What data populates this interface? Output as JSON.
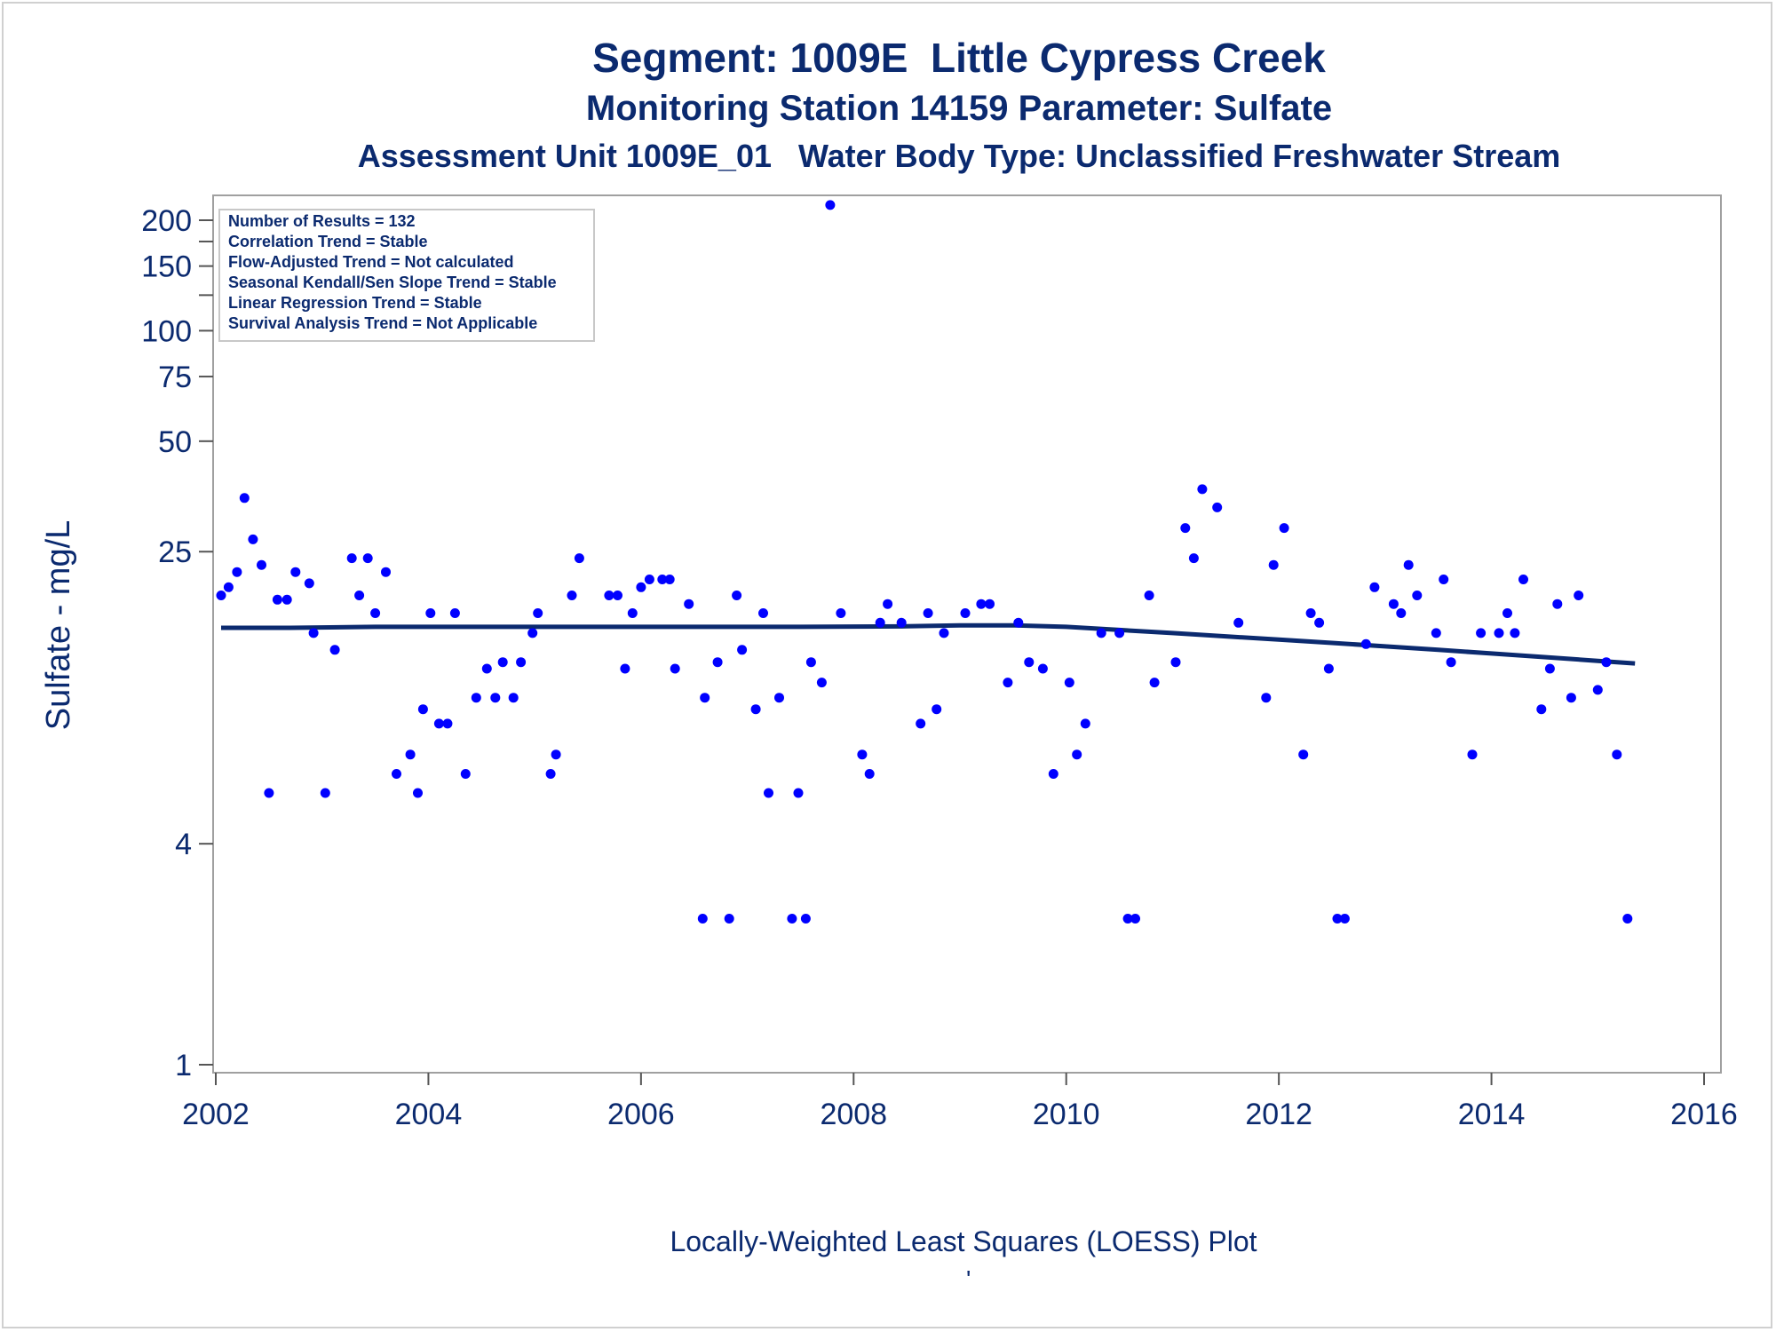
{
  "title": "Segment: 1009E  Little Cypress Creek",
  "subtitle": "Monitoring Station 14159 Parameter: Sulfate",
  "subtitle2": "Assessment Unit 1009E_01   Water Body Type: Unclassified Freshwater Stream",
  "footnote": "Locally-Weighted Least Squares (LOESS) Plot",
  "footnote_mark": "'",
  "stats_box": [
    "Number of Results = 132",
    "Correlation Trend = Stable",
    "Flow-Adjusted Trend = Not calculated",
    "Seasonal Kendall/Sen Slope Trend = Stable",
    "Linear Regression Trend = Stable",
    "Survival Analysis Trend = Not Applicable"
  ],
  "colors": {
    "text": "#0b2a6f",
    "points": "#0000ff",
    "loess": "#0b2a6f",
    "frame": "#a0a0a0"
  },
  "chart_data": {
    "type": "scatter",
    "ylabel": "Sulfate - mg/L",
    "xlabel": "",
    "y_scale": "log",
    "xlim": [
      2002,
      2016
    ],
    "ylim": [
      1,
      220
    ],
    "x_ticks": [
      2002,
      2004,
      2006,
      2008,
      2010,
      2012,
      2014,
      2016
    ],
    "y_ticks": [
      1,
      4,
      25,
      50,
      75,
      100,
      150,
      200
    ],
    "legend": "none",
    "grid": false,
    "series": [
      {
        "points": [
          [
            2002.05,
            19
          ],
          [
            2002.12,
            20
          ],
          [
            2002.2,
            22
          ],
          [
            2002.27,
            35
          ],
          [
            2002.35,
            27
          ],
          [
            2002.43,
            23
          ],
          [
            2002.5,
            5.5
          ],
          [
            2002.58,
            18.5
          ],
          [
            2002.67,
            18.5
          ],
          [
            2002.75,
            22
          ],
          [
            2002.88,
            20.5
          ],
          [
            2002.92,
            15
          ],
          [
            2003.03,
            5.5
          ],
          [
            2003.12,
            13.5
          ],
          [
            2003.28,
            24
          ],
          [
            2003.35,
            19
          ],
          [
            2003.43,
            24
          ],
          [
            2003.5,
            17
          ],
          [
            2003.6,
            22
          ],
          [
            2003.7,
            6.2
          ],
          [
            2003.83,
            7
          ],
          [
            2003.9,
            5.5
          ],
          [
            2003.95,
            9.3
          ],
          [
            2004.02,
            17
          ],
          [
            2004.1,
            8.5
          ],
          [
            2004.18,
            8.5
          ],
          [
            2004.25,
            17
          ],
          [
            2004.35,
            6.2
          ],
          [
            2004.45,
            10
          ],
          [
            2004.55,
            12
          ],
          [
            2004.63,
            10
          ],
          [
            2004.7,
            12.5
          ],
          [
            2004.8,
            10
          ],
          [
            2004.87,
            12.5
          ],
          [
            2004.98,
            15
          ],
          [
            2005.03,
            17
          ],
          [
            2005.15,
            6.2
          ],
          [
            2005.2,
            7
          ],
          [
            2005.35,
            19
          ],
          [
            2005.42,
            24
          ],
          [
            2005.7,
            19
          ],
          [
            2005.78,
            19
          ],
          [
            2005.85,
            12
          ],
          [
            2005.92,
            17
          ],
          [
            2006.0,
            20
          ],
          [
            2006.08,
            21
          ],
          [
            2006.2,
            21
          ],
          [
            2006.27,
            21
          ],
          [
            2006.32,
            12
          ],
          [
            2006.45,
            18
          ],
          [
            2006.58,
            2.5
          ],
          [
            2006.6,
            10
          ],
          [
            2006.72,
            12.5
          ],
          [
            2006.83,
            2.5
          ],
          [
            2006.9,
            19
          ],
          [
            2006.95,
            13.5
          ],
          [
            2007.08,
            9.3
          ],
          [
            2007.15,
            17
          ],
          [
            2007.2,
            5.5
          ],
          [
            2007.3,
            10
          ],
          [
            2007.42,
            2.5
          ],
          [
            2007.48,
            5.5
          ],
          [
            2007.55,
            2.5
          ],
          [
            2007.6,
            12.5
          ],
          [
            2007.7,
            11
          ],
          [
            2007.78,
            220
          ],
          [
            2007.88,
            17
          ],
          [
            2008.08,
            7
          ],
          [
            2008.15,
            6.2
          ],
          [
            2008.25,
            16
          ],
          [
            2008.32,
            18
          ],
          [
            2008.45,
            16
          ],
          [
            2008.63,
            8.5
          ],
          [
            2008.7,
            17
          ],
          [
            2008.78,
            9.3
          ],
          [
            2008.85,
            15
          ],
          [
            2009.05,
            17
          ],
          [
            2009.2,
            18
          ],
          [
            2009.28,
            18
          ],
          [
            2009.45,
            11
          ],
          [
            2009.55,
            16
          ],
          [
            2009.65,
            12.5
          ],
          [
            2009.78,
            12
          ],
          [
            2009.88,
            6.2
          ],
          [
            2010.03,
            11
          ],
          [
            2010.1,
            7
          ],
          [
            2010.18,
            8.5
          ],
          [
            2010.33,
            15
          ],
          [
            2010.5,
            15
          ],
          [
            2010.58,
            2.5
          ],
          [
            2010.65,
            2.5
          ],
          [
            2010.78,
            19
          ],
          [
            2010.83,
            11
          ],
          [
            2011.03,
            12.5
          ],
          [
            2011.12,
            29
          ],
          [
            2011.2,
            24
          ],
          [
            2011.28,
            37
          ],
          [
            2011.42,
            33
          ],
          [
            2011.62,
            16
          ],
          [
            2011.88,
            10
          ],
          [
            2011.95,
            23
          ],
          [
            2012.05,
            29
          ],
          [
            2012.23,
            7
          ],
          [
            2012.3,
            17
          ],
          [
            2012.38,
            16
          ],
          [
            2012.47,
            12
          ],
          [
            2012.55,
            2.5
          ],
          [
            2012.62,
            2.5
          ],
          [
            2012.82,
            14
          ],
          [
            2012.9,
            20
          ],
          [
            2013.08,
            18
          ],
          [
            2013.15,
            17
          ],
          [
            2013.22,
            23
          ],
          [
            2013.3,
            19
          ],
          [
            2013.48,
            15
          ],
          [
            2013.55,
            21
          ],
          [
            2013.62,
            12.5
          ],
          [
            2013.82,
            7
          ],
          [
            2013.9,
            15
          ],
          [
            2014.07,
            15
          ],
          [
            2014.15,
            17
          ],
          [
            2014.22,
            15
          ],
          [
            2014.3,
            21
          ],
          [
            2014.47,
            9.3
          ],
          [
            2014.55,
            12
          ],
          [
            2014.62,
            18
          ],
          [
            2014.75,
            10
          ],
          [
            2014.82,
            19
          ],
          [
            2015.0,
            10.5
          ],
          [
            2015.08,
            12.5
          ],
          [
            2015.18,
            7
          ],
          [
            2015.28,
            2.5
          ]
        ]
      },
      {
        "loess": [
          [
            2002.05,
            15.5
          ],
          [
            2002.7,
            15.5
          ],
          [
            2003.5,
            15.6
          ],
          [
            2004.5,
            15.6
          ],
          [
            2005.5,
            15.6
          ],
          [
            2006.5,
            15.6
          ],
          [
            2007.5,
            15.6
          ],
          [
            2008.5,
            15.65
          ],
          [
            2009.0,
            15.75
          ],
          [
            2009.5,
            15.75
          ],
          [
            2010.0,
            15.6
          ],
          [
            2010.5,
            15.3
          ],
          [
            2011.0,
            15.0
          ],
          [
            2011.5,
            14.7
          ],
          [
            2012.0,
            14.4
          ],
          [
            2012.5,
            14.1
          ],
          [
            2013.0,
            13.8
          ],
          [
            2013.5,
            13.5
          ],
          [
            2014.0,
            13.2
          ],
          [
            2014.5,
            12.9
          ],
          [
            2015.0,
            12.6
          ],
          [
            2015.35,
            12.4
          ]
        ]
      }
    ]
  }
}
